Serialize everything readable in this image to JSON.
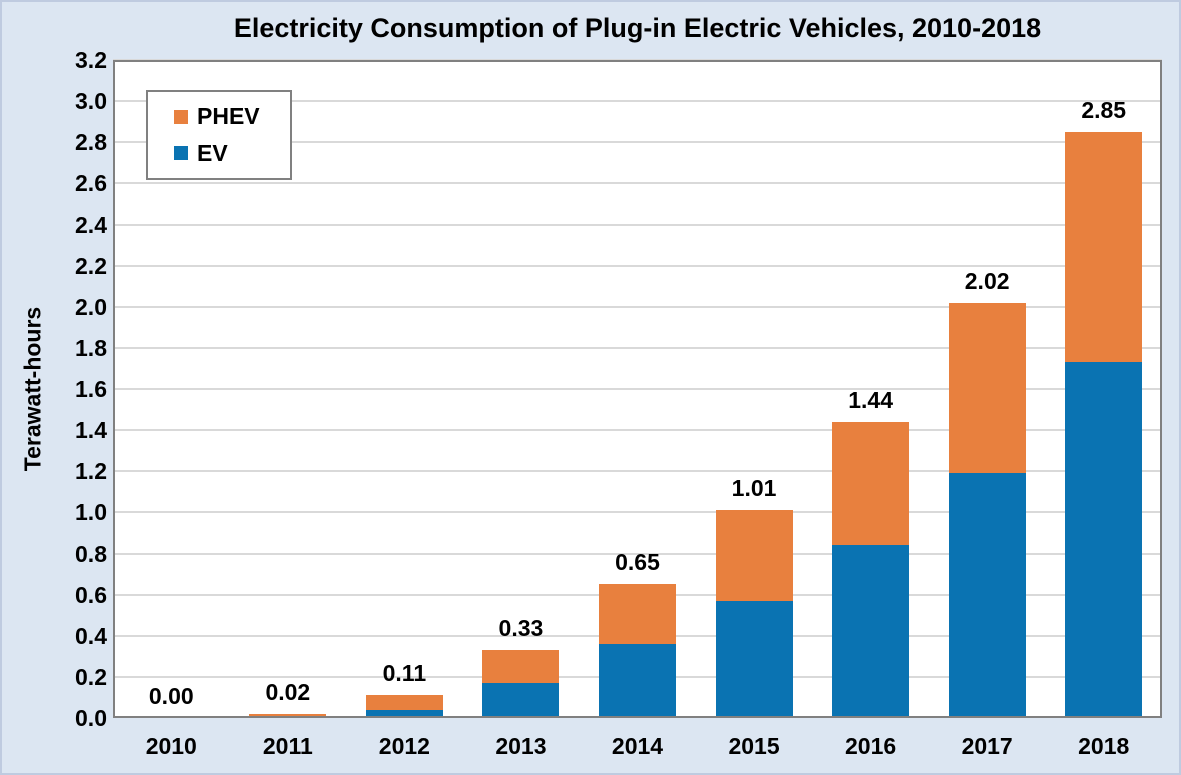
{
  "window": {
    "background_color": "#dce6f2"
  },
  "chart_data": {
    "type": "bar",
    "stacked": true,
    "title": "Electricity Consumption of Plug-in Electric Vehicles, 2010-2018",
    "ylabel": "Terawatt-hours",
    "xlabel": "",
    "categories": [
      "2010",
      "2011",
      "2012",
      "2013",
      "2014",
      "2015",
      "2016",
      "2017",
      "2018"
    ],
    "series": [
      {
        "name": "PHEV",
        "color": "#e8803e",
        "values": [
          0.0,
          0.01,
          0.07,
          0.16,
          0.29,
          0.44,
          0.6,
          0.83,
          1.12
        ]
      },
      {
        "name": "EV",
        "color": "#0a73b2",
        "values": [
          0.0,
          0.01,
          0.04,
          0.17,
          0.36,
          0.57,
          0.84,
          1.19,
          1.73
        ]
      }
    ],
    "total_labels": [
      "0.00",
      "0.02",
      "0.11",
      "0.33",
      "0.65",
      "1.01",
      "1.44",
      "2.02",
      "2.85"
    ],
    "ylim": [
      0,
      3.2
    ],
    "ytick_step": 0.2,
    "grid": "horizontal",
    "gridline_color": "#d9d9d9",
    "plot_background": "#ffffff",
    "plot_border_color": "#808080",
    "legend": {
      "position": "top-left",
      "entries": [
        "PHEV",
        "EV"
      ]
    }
  }
}
